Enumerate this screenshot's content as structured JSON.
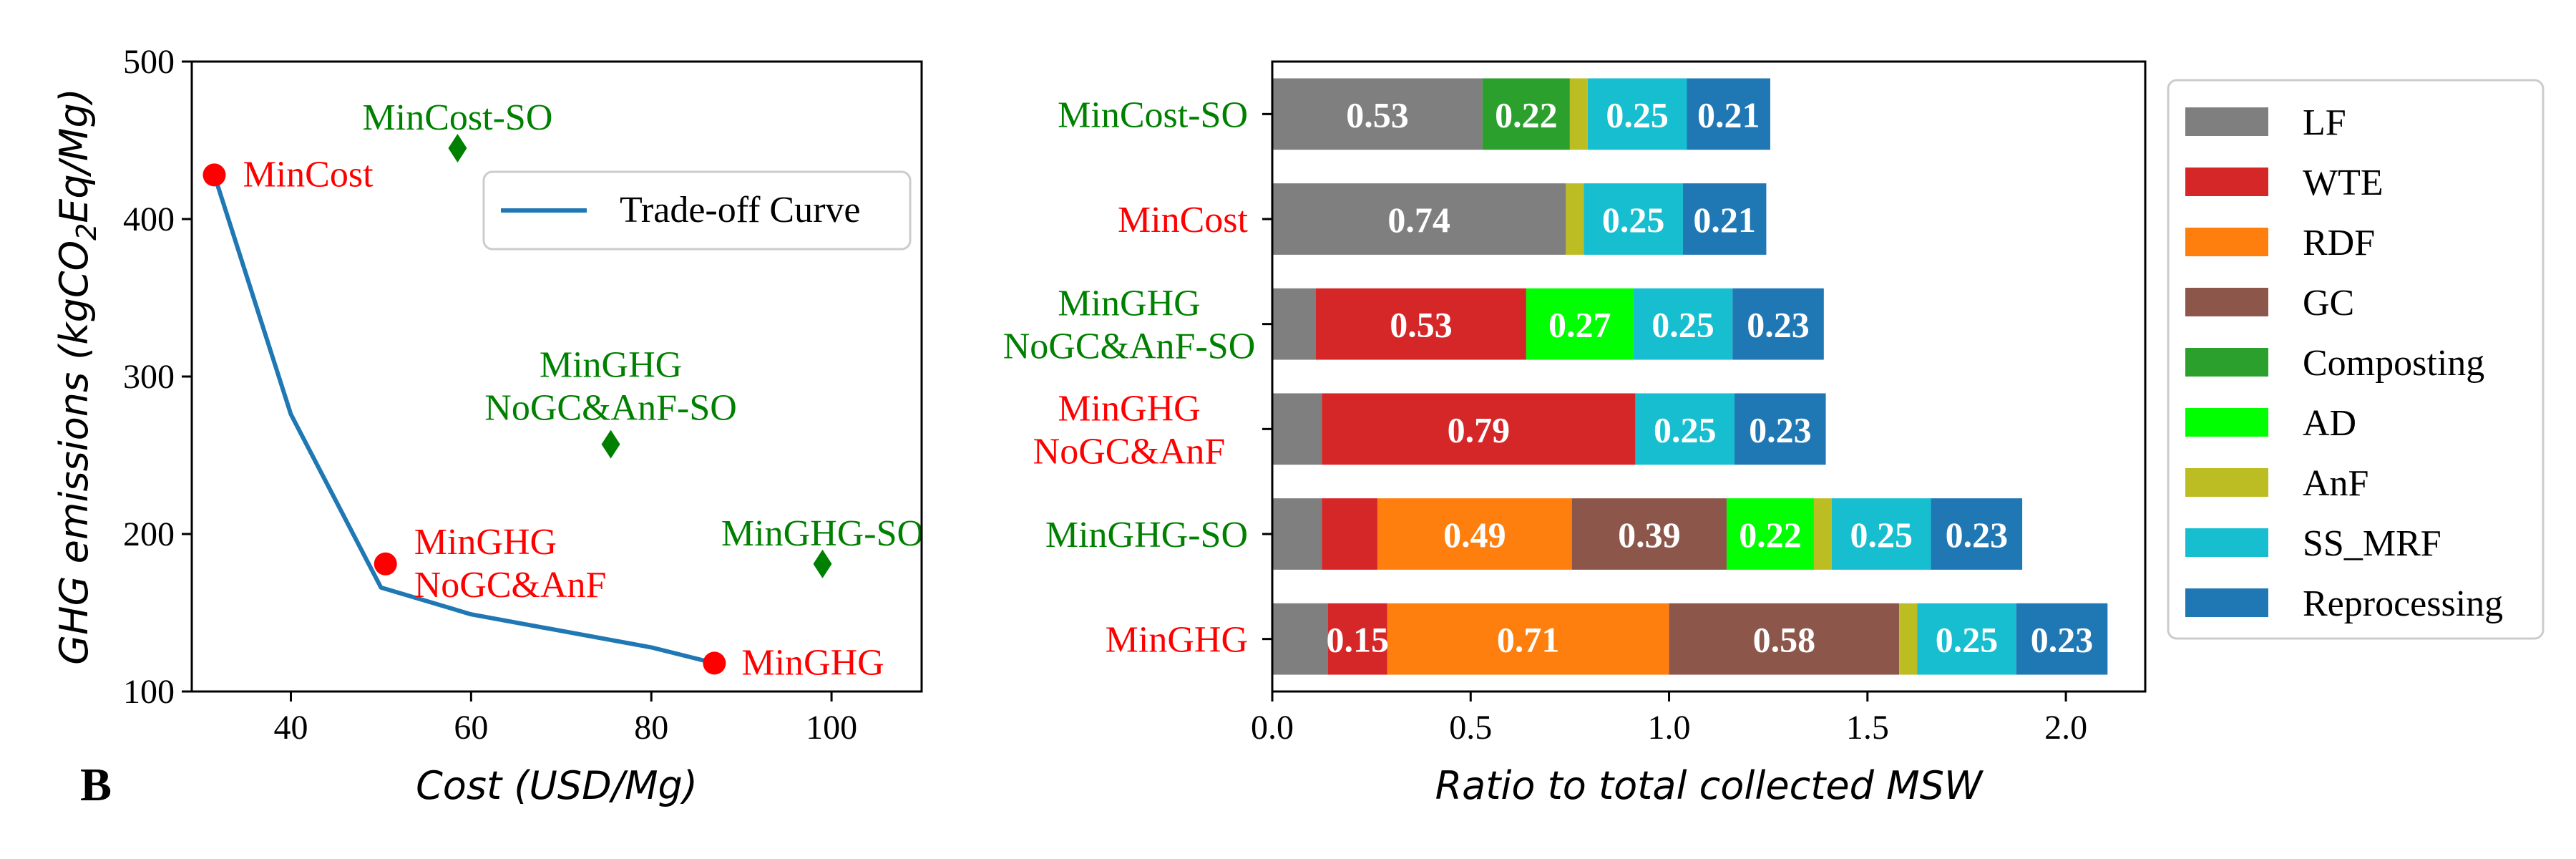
{
  "panel_label": "B",
  "chart_data": [
    {
      "type": "scatter",
      "xlabel": "Cost (USD/Mg)",
      "ylabel_prefix": "GHG emissions (kgCO",
      "ylabel_sub": "2",
      "ylabel_suffix": "Eq/Mg)",
      "xlim": [
        29,
        110
      ],
      "ylim": [
        100,
        500
      ],
      "xticks": [
        40,
        60,
        80,
        100
      ],
      "yticks": [
        100,
        200,
        300,
        400,
        500
      ],
      "legend_position": "upper right",
      "legend_entries": [
        "Trade-off Curve"
      ],
      "tradeoff_curve": {
        "name": "Trade-off Curve",
        "color": "#1f77b4",
        "x": [
          31.5,
          40,
          50,
          60,
          80,
          87
        ],
        "y": [
          428,
          276,
          166,
          149,
          128,
          118
        ]
      },
      "points": [
        {
          "label": "MinCost",
          "x": 31.5,
          "y": 428,
          "marker": "circle",
          "color": "#ff0000"
        },
        {
          "label": "MinGHG\nNoGC&AnF",
          "x": 50.5,
          "y": 181,
          "marker": "circle",
          "color": "#ff0000"
        },
        {
          "label": "MinGHG",
          "x": 87,
          "y": 118,
          "marker": "circle",
          "color": "#ff0000"
        },
        {
          "label": "MinCost-SO",
          "x": 58.5,
          "y": 445,
          "marker": "diamond",
          "color": "#008000"
        },
        {
          "label": "MinGHG\nNoGC&AnF-SO",
          "x": 75.5,
          "y": 257,
          "marker": "diamond",
          "color": "#008000"
        },
        {
          "label": "MinGHG-SO",
          "x": 99,
          "y": 181,
          "marker": "diamond",
          "color": "#008000"
        }
      ]
    },
    {
      "type": "bar",
      "orientation": "horizontal",
      "stacked": true,
      "xlabel": "Ratio to total collected MSW",
      "xlim": [
        0,
        2.2
      ],
      "xticks": [
        0.0,
        0.5,
        1.0,
        1.5,
        2.0
      ],
      "xtick_labels": [
        "0.0",
        "0.5",
        "1.0",
        "1.5",
        "2.0"
      ],
      "legend_position": "right",
      "categories": [
        "MinCost-SO",
        "MinCost",
        "MinGHG\nNoGC&AnF-SO",
        "MinGHG\nNoGC&AnF",
        "MinGHG-SO",
        "MinGHG"
      ],
      "category_colors": [
        "#008000",
        "#ff0000",
        "#008000",
        "#ff0000",
        "#008000",
        "#ff0000"
      ],
      "series": [
        {
          "name": "LF",
          "color": "#7f7f7f",
          "values": [
            0.53,
            0.74,
            0.11,
            0.125,
            0.125,
            0.14
          ]
        },
        {
          "name": "WTE",
          "color": "#d62728",
          "values": [
            0,
            0,
            0.53,
            0.79,
            0.14,
            0.15
          ]
        },
        {
          "name": "RDF",
          "color": "#ff7f0e",
          "values": [
            0,
            0,
            0,
            0,
            0.49,
            0.71
          ]
        },
        {
          "name": "GC",
          "color": "#8c564b",
          "values": [
            0,
            0,
            0,
            0,
            0.39,
            0.58
          ]
        },
        {
          "name": "Composting",
          "color": "#2ca02c",
          "values": [
            0.22,
            0,
            0,
            0,
            0,
            0
          ]
        },
        {
          "name": "AD",
          "color": "#00ff00",
          "values": [
            0,
            0,
            0.27,
            0,
            0.22,
            0
          ]
        },
        {
          "name": "AnF",
          "color": "#bcbd22",
          "values": [
            0.045,
            0.045,
            0,
            0,
            0.045,
            0.045
          ]
        },
        {
          "name": "SS_MRF",
          "color": "#17becf",
          "values": [
            0.25,
            0.25,
            0.25,
            0.25,
            0.25,
            0.25
          ]
        },
        {
          "name": "Reprocessing",
          "color": "#1f77b4",
          "values": [
            0.21,
            0.21,
            0.23,
            0.23,
            0.23,
            0.23
          ]
        }
      ],
      "data_labels": [
        [
          "0.53",
          "",
          "",
          "",
          "0.22",
          "",
          "",
          "0.25",
          "0.21"
        ],
        [
          "0.74",
          "",
          "",
          "",
          "",
          "",
          "",
          "0.25",
          "0.21"
        ],
        [
          "",
          "0.53",
          "",
          "",
          "",
          "0.27",
          "",
          "0.25",
          "0.23"
        ],
        [
          "",
          "0.79",
          "",
          "",
          "",
          "",
          "",
          "0.25",
          "0.23"
        ],
        [
          "",
          "",
          "0.49",
          "0.39",
          "",
          "0.22",
          "",
          "0.25",
          "0.23"
        ],
        [
          "",
          "0.15",
          "0.71",
          "0.58",
          "",
          "",
          "",
          "0.25",
          "0.23"
        ]
      ]
    }
  ]
}
